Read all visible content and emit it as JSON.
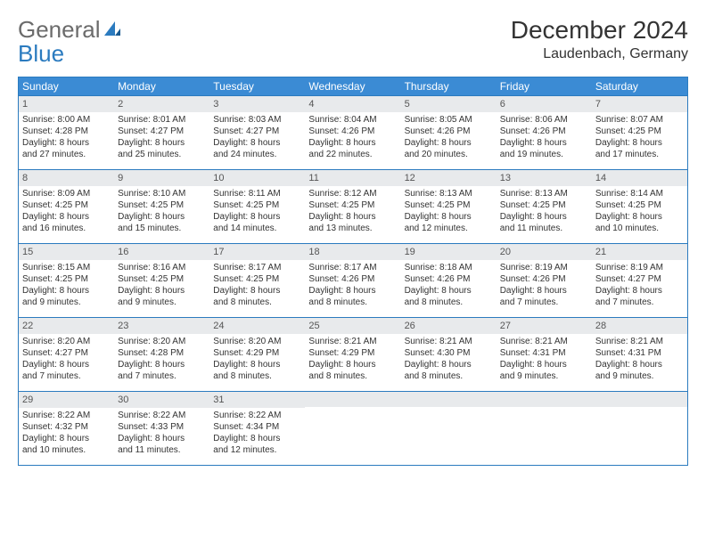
{
  "logo": {
    "text_general": "General",
    "text_blue": "Blue"
  },
  "title": "December 2024",
  "location": "Laudenbach, Germany",
  "colors": {
    "header_bg": "#3b8bd4",
    "header_text": "#ffffff",
    "daynum_bg": "#e8eaec",
    "border": "#2b7bbf",
    "logo_gray": "#6b6b6b",
    "logo_blue": "#2b7bbf"
  },
  "typography": {
    "title_fontsize": 28,
    "location_fontsize": 16,
    "dow_fontsize": 12,
    "cell_fontsize": 10
  },
  "day_names": [
    "Sunday",
    "Monday",
    "Tuesday",
    "Wednesday",
    "Thursday",
    "Friday",
    "Saturday"
  ],
  "weeks": [
    [
      {
        "n": "1",
        "sr": "Sunrise: 8:00 AM",
        "ss": "Sunset: 4:28 PM",
        "d1": "Daylight: 8 hours",
        "d2": "and 27 minutes."
      },
      {
        "n": "2",
        "sr": "Sunrise: 8:01 AM",
        "ss": "Sunset: 4:27 PM",
        "d1": "Daylight: 8 hours",
        "d2": "and 25 minutes."
      },
      {
        "n": "3",
        "sr": "Sunrise: 8:03 AM",
        "ss": "Sunset: 4:27 PM",
        "d1": "Daylight: 8 hours",
        "d2": "and 24 minutes."
      },
      {
        "n": "4",
        "sr": "Sunrise: 8:04 AM",
        "ss": "Sunset: 4:26 PM",
        "d1": "Daylight: 8 hours",
        "d2": "and 22 minutes."
      },
      {
        "n": "5",
        "sr": "Sunrise: 8:05 AM",
        "ss": "Sunset: 4:26 PM",
        "d1": "Daylight: 8 hours",
        "d2": "and 20 minutes."
      },
      {
        "n": "6",
        "sr": "Sunrise: 8:06 AM",
        "ss": "Sunset: 4:26 PM",
        "d1": "Daylight: 8 hours",
        "d2": "and 19 minutes."
      },
      {
        "n": "7",
        "sr": "Sunrise: 8:07 AM",
        "ss": "Sunset: 4:25 PM",
        "d1": "Daylight: 8 hours",
        "d2": "and 17 minutes."
      }
    ],
    [
      {
        "n": "8",
        "sr": "Sunrise: 8:09 AM",
        "ss": "Sunset: 4:25 PM",
        "d1": "Daylight: 8 hours",
        "d2": "and 16 minutes."
      },
      {
        "n": "9",
        "sr": "Sunrise: 8:10 AM",
        "ss": "Sunset: 4:25 PM",
        "d1": "Daylight: 8 hours",
        "d2": "and 15 minutes."
      },
      {
        "n": "10",
        "sr": "Sunrise: 8:11 AM",
        "ss": "Sunset: 4:25 PM",
        "d1": "Daylight: 8 hours",
        "d2": "and 14 minutes."
      },
      {
        "n": "11",
        "sr": "Sunrise: 8:12 AM",
        "ss": "Sunset: 4:25 PM",
        "d1": "Daylight: 8 hours",
        "d2": "and 13 minutes."
      },
      {
        "n": "12",
        "sr": "Sunrise: 8:13 AM",
        "ss": "Sunset: 4:25 PM",
        "d1": "Daylight: 8 hours",
        "d2": "and 12 minutes."
      },
      {
        "n": "13",
        "sr": "Sunrise: 8:13 AM",
        "ss": "Sunset: 4:25 PM",
        "d1": "Daylight: 8 hours",
        "d2": "and 11 minutes."
      },
      {
        "n": "14",
        "sr": "Sunrise: 8:14 AM",
        "ss": "Sunset: 4:25 PM",
        "d1": "Daylight: 8 hours",
        "d2": "and 10 minutes."
      }
    ],
    [
      {
        "n": "15",
        "sr": "Sunrise: 8:15 AM",
        "ss": "Sunset: 4:25 PM",
        "d1": "Daylight: 8 hours",
        "d2": "and 9 minutes."
      },
      {
        "n": "16",
        "sr": "Sunrise: 8:16 AM",
        "ss": "Sunset: 4:25 PM",
        "d1": "Daylight: 8 hours",
        "d2": "and 9 minutes."
      },
      {
        "n": "17",
        "sr": "Sunrise: 8:17 AM",
        "ss": "Sunset: 4:25 PM",
        "d1": "Daylight: 8 hours",
        "d2": "and 8 minutes."
      },
      {
        "n": "18",
        "sr": "Sunrise: 8:17 AM",
        "ss": "Sunset: 4:26 PM",
        "d1": "Daylight: 8 hours",
        "d2": "and 8 minutes."
      },
      {
        "n": "19",
        "sr": "Sunrise: 8:18 AM",
        "ss": "Sunset: 4:26 PM",
        "d1": "Daylight: 8 hours",
        "d2": "and 8 minutes."
      },
      {
        "n": "20",
        "sr": "Sunrise: 8:19 AM",
        "ss": "Sunset: 4:26 PM",
        "d1": "Daylight: 8 hours",
        "d2": "and 7 minutes."
      },
      {
        "n": "21",
        "sr": "Sunrise: 8:19 AM",
        "ss": "Sunset: 4:27 PM",
        "d1": "Daylight: 8 hours",
        "d2": "and 7 minutes."
      }
    ],
    [
      {
        "n": "22",
        "sr": "Sunrise: 8:20 AM",
        "ss": "Sunset: 4:27 PM",
        "d1": "Daylight: 8 hours",
        "d2": "and 7 minutes."
      },
      {
        "n": "23",
        "sr": "Sunrise: 8:20 AM",
        "ss": "Sunset: 4:28 PM",
        "d1": "Daylight: 8 hours",
        "d2": "and 7 minutes."
      },
      {
        "n": "24",
        "sr": "Sunrise: 8:20 AM",
        "ss": "Sunset: 4:29 PM",
        "d1": "Daylight: 8 hours",
        "d2": "and 8 minutes."
      },
      {
        "n": "25",
        "sr": "Sunrise: 8:21 AM",
        "ss": "Sunset: 4:29 PM",
        "d1": "Daylight: 8 hours",
        "d2": "and 8 minutes."
      },
      {
        "n": "26",
        "sr": "Sunrise: 8:21 AM",
        "ss": "Sunset: 4:30 PM",
        "d1": "Daylight: 8 hours",
        "d2": "and 8 minutes."
      },
      {
        "n": "27",
        "sr": "Sunrise: 8:21 AM",
        "ss": "Sunset: 4:31 PM",
        "d1": "Daylight: 8 hours",
        "d2": "and 9 minutes."
      },
      {
        "n": "28",
        "sr": "Sunrise: 8:21 AM",
        "ss": "Sunset: 4:31 PM",
        "d1": "Daylight: 8 hours",
        "d2": "and 9 minutes."
      }
    ],
    [
      {
        "n": "29",
        "sr": "Sunrise: 8:22 AM",
        "ss": "Sunset: 4:32 PM",
        "d1": "Daylight: 8 hours",
        "d2": "and 10 minutes."
      },
      {
        "n": "30",
        "sr": "Sunrise: 8:22 AM",
        "ss": "Sunset: 4:33 PM",
        "d1": "Daylight: 8 hours",
        "d2": "and 11 minutes."
      },
      {
        "n": "31",
        "sr": "Sunrise: 8:22 AM",
        "ss": "Sunset: 4:34 PM",
        "d1": "Daylight: 8 hours",
        "d2": "and 12 minutes."
      },
      {
        "n": "",
        "empty": true
      },
      {
        "n": "",
        "empty": true
      },
      {
        "n": "",
        "empty": true
      },
      {
        "n": "",
        "empty": true
      }
    ]
  ]
}
